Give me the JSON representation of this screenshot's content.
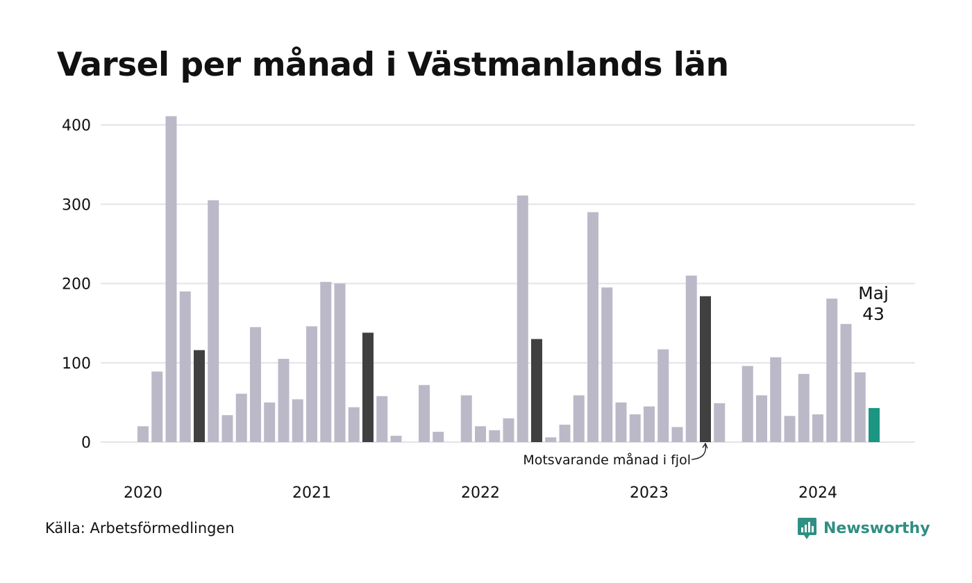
{
  "title": "Varsel per månad i Västmanlands län",
  "source": "Källa: Arbetsförmedlingen",
  "brand": {
    "name": "Newsworthy",
    "icon": "newsworthy-logo-icon"
  },
  "colors": {
    "bar": "#bbb9c8",
    "same_month": "#404040",
    "current": "#1a9683",
    "grid": "#e3e3e8"
  },
  "chart_data": {
    "type": "bar",
    "title": "Varsel per månad i Västmanlands län",
    "xlabel": "",
    "ylabel": "",
    "ylim": [
      0,
      420
    ],
    "yticks": [
      0,
      100,
      200,
      300,
      400
    ],
    "xtick_labels": [
      "2020",
      "2021",
      "2022",
      "2023",
      "2024"
    ],
    "grid": true,
    "x": [
      "2020-01",
      "2020-02",
      "2020-03",
      "2020-04",
      "2020-05",
      "2020-06",
      "2020-07",
      "2020-08",
      "2020-09",
      "2020-10",
      "2020-11",
      "2020-12",
      "2021-01",
      "2021-02",
      "2021-03",
      "2021-04",
      "2021-05",
      "2021-06",
      "2021-07",
      "2021-08",
      "2021-09",
      "2021-10",
      "2021-11",
      "2021-12",
      "2022-01",
      "2022-02",
      "2022-03",
      "2022-04",
      "2022-05",
      "2022-06",
      "2022-07",
      "2022-08",
      "2022-09",
      "2022-10",
      "2022-11",
      "2022-12",
      "2023-01",
      "2023-02",
      "2023-03",
      "2023-04",
      "2023-05",
      "2023-06",
      "2023-07",
      "2023-08",
      "2023-09",
      "2023-10",
      "2023-11",
      "2023-12",
      "2024-01",
      "2024-02",
      "2024-03",
      "2024-04",
      "2024-05"
    ],
    "values": [
      20,
      89,
      411,
      190,
      116,
      305,
      34,
      61,
      145,
      50,
      105,
      54,
      146,
      202,
      200,
      44,
      138,
      58,
      8,
      0,
      72,
      13,
      0,
      59,
      20,
      15,
      30,
      311,
      130,
      6,
      22,
      59,
      290,
      195,
      50,
      35,
      45,
      117,
      19,
      210,
      184,
      49,
      0,
      96,
      59,
      107,
      33,
      86,
      35,
      181,
      149,
      88,
      43
    ],
    "highlight": {
      "same_month_indices": [
        4,
        16,
        28,
        40
      ],
      "current_index": 52
    },
    "annotations": {
      "current": {
        "month": "Maj",
        "value": "43"
      },
      "previous_year": "Motsvarande månad i fjol"
    }
  }
}
